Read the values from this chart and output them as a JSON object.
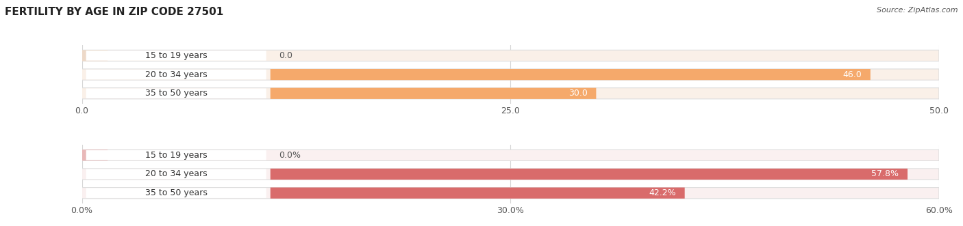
{
  "title": "FERTILITY BY AGE IN ZIP CODE 27501",
  "source": "Source: ZipAtlas.com",
  "top_chart": {
    "categories": [
      "15 to 19 years",
      "20 to 34 years",
      "35 to 50 years"
    ],
    "values": [
      0.0,
      46.0,
      30.0
    ],
    "xlim": [
      0,
      50
    ],
    "xticks": [
      0.0,
      25.0,
      50.0
    ],
    "xtick_labels": [
      "0.0",
      "25.0",
      "50.0"
    ],
    "bar_color": "#F5A96B",
    "bar_bg_color": "#EDD9C8",
    "bar_light_bg": "#FAF0E8",
    "label_color_inside": "#FFFFFF",
    "label_color_outside": "#666666"
  },
  "bottom_chart": {
    "categories": [
      "15 to 19 years",
      "20 to 34 years",
      "35 to 50 years"
    ],
    "values": [
      0.0,
      57.8,
      42.2
    ],
    "xlim": [
      0,
      60
    ],
    "xticks": [
      0.0,
      30.0,
      60.0
    ],
    "xtick_labels": [
      "0.0%",
      "30.0%",
      "60.0%"
    ],
    "bar_color": "#D96B6B",
    "bar_bg_color": "#E8B8B8",
    "bar_light_bg": "#FAF0F0",
    "label_color_inside": "#FFFFFF",
    "label_color_outside": "#666666"
  },
  "fig_bg_color": "#FFFFFF",
  "title_fontsize": 11,
  "label_fontsize": 9,
  "tick_fontsize": 9,
  "category_fontsize": 9
}
